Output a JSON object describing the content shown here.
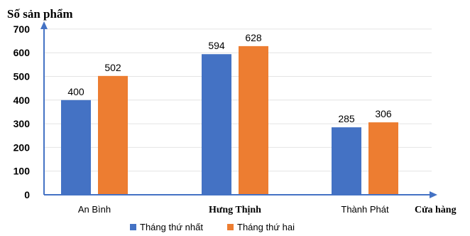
{
  "chart_data": {
    "type": "bar",
    "ylabel": "Số sản phẩm",
    "xlabel": "Cửa hàng",
    "categories": [
      "An Bình",
      "Hưng Thịnh",
      "Thành Phát"
    ],
    "series": [
      {
        "name": "Tháng thứ nhất",
        "values": [
          400,
          594,
          285
        ],
        "color": "#4472C4"
      },
      {
        "name": "Tháng thứ hai",
        "values": [
          502,
          628,
          306
        ],
        "color": "#ED7D31"
      }
    ],
    "ylim": [
      0,
      700
    ],
    "yticks": [
      0,
      100,
      200,
      300,
      400,
      500,
      600,
      700
    ],
    "grid": true,
    "legend": "bottom"
  }
}
